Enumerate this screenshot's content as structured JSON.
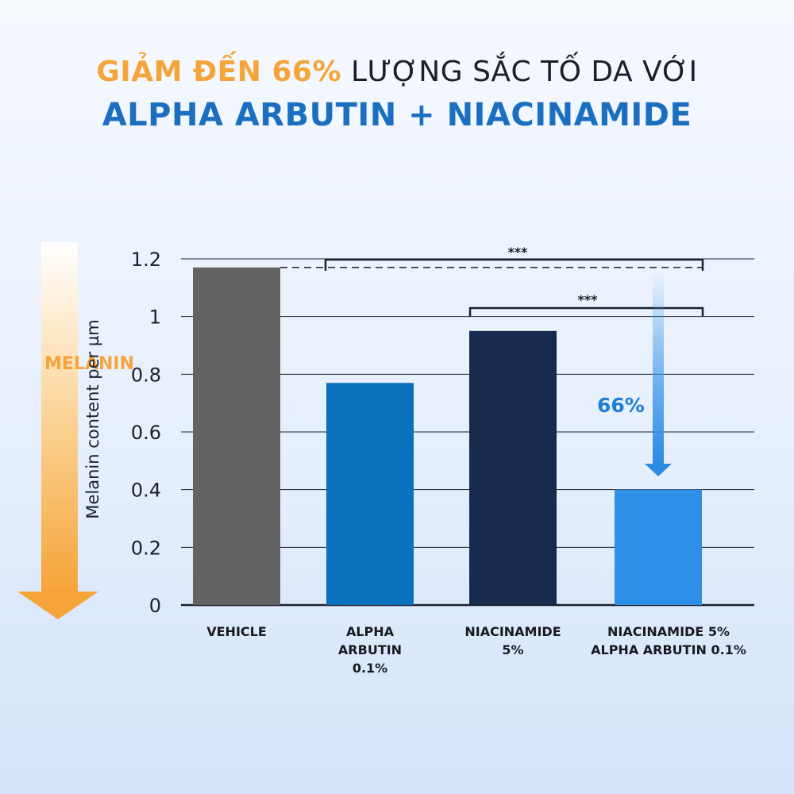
{
  "headline": {
    "highlight": "GIẢM ĐẾN 66%",
    "rest": " LƯỢNG SẮC TỐ DA VỚI",
    "line2": "ALPHA ARBUTIN + NIACINAMIDE"
  },
  "side_label": "MELANIN",
  "chart_data": {
    "type": "bar",
    "ylabel": "Melanin content per µm",
    "xlabel": "",
    "ylim": [
      0,
      1.2
    ],
    "yticks": [
      "0",
      "0.2",
      "0.4",
      "0.6",
      "0.8",
      "1",
      "1.2"
    ],
    "categories": [
      "VEHICLE",
      "ALPHA\nARBUTIN\n0.1%",
      "NIACINAMIDE\n5%",
      "NIACINAMIDE 5%\nALPHA ARBUTIN 0.1%"
    ],
    "values": [
      1.17,
      0.77,
      0.95,
      0.4
    ],
    "colors": [
      "#636363",
      "#0a72bc",
      "#172a4e",
      "#2e8fe6"
    ],
    "grid": true,
    "annotations": {
      "significance": [
        "***",
        "***"
      ],
      "reduction": "66%"
    }
  },
  "colors": {
    "accent_orange": "#f5a43a",
    "accent_blue": "#1a6fc0"
  }
}
